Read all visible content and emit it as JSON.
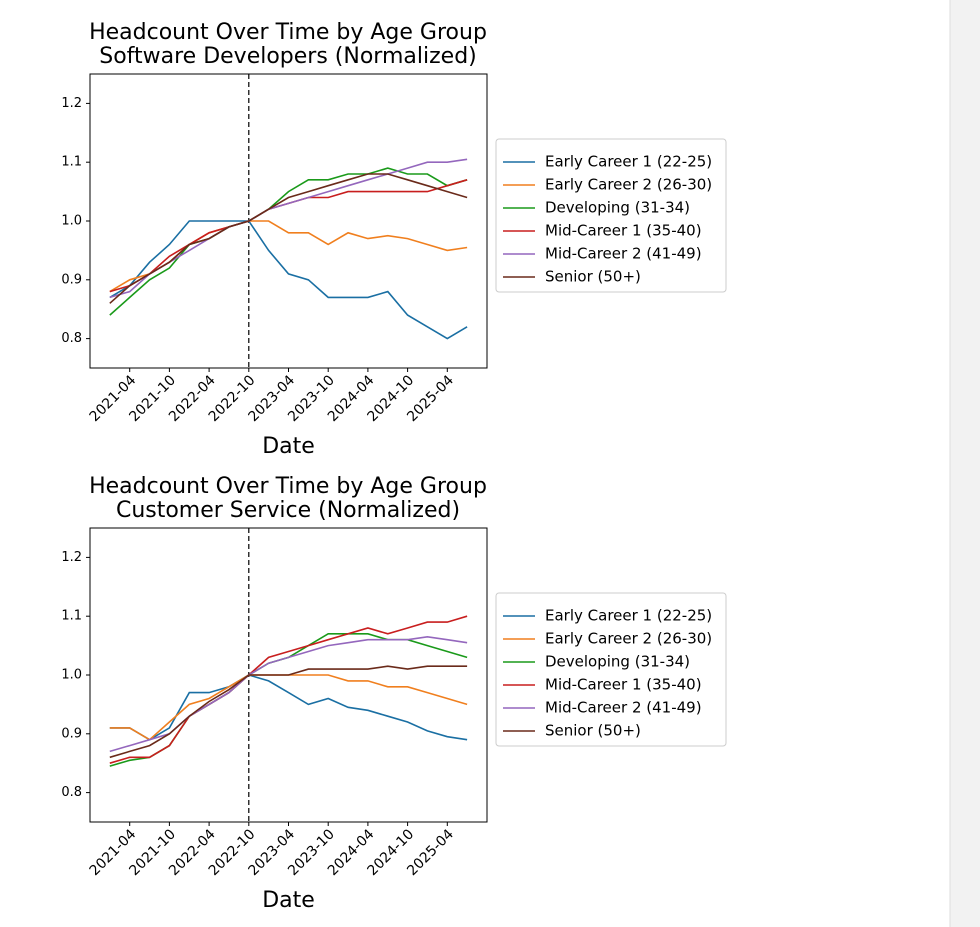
{
  "chart_data": [
    {
      "type": "line",
      "title": "Headcount Over Time by Age Group",
      "subtitle": "Software Developers (Normalized)",
      "xlabel": "Date",
      "x": [
        "2021-01",
        "2021-04",
        "2021-07",
        "2021-10",
        "2022-01",
        "2022-04",
        "2022-07",
        "2022-10",
        "2023-01",
        "2023-04",
        "2023-07",
        "2023-10",
        "2024-01",
        "2024-04",
        "2024-07",
        "2024-10",
        "2025-01",
        "2025-04",
        "2025-07"
      ],
      "series": [
        {
          "name": "Early Career 1 (22-25)",
          "color": "#1a6fa3",
          "values": [
            0.87,
            0.89,
            0.93,
            0.96,
            1.0,
            1.0,
            1.0,
            1.0,
            0.95,
            0.91,
            0.9,
            0.87,
            0.87,
            0.87,
            0.88,
            0.84,
            0.82,
            0.8,
            0.82
          ]
        },
        {
          "name": "Early Career 2 (26-30)",
          "color": "#f07f1e",
          "values": [
            0.88,
            0.9,
            0.91,
            0.93,
            0.96,
            0.98,
            0.99,
            1.0,
            1.0,
            0.98,
            0.98,
            0.96,
            0.98,
            0.97,
            0.975,
            0.97,
            0.96,
            0.95,
            0.955
          ]
        },
        {
          "name": "Developing (31-34)",
          "color": "#1a9a1a",
          "values": [
            0.84,
            0.87,
            0.9,
            0.92,
            0.96,
            0.97,
            0.99,
            1.0,
            1.02,
            1.05,
            1.07,
            1.07,
            1.08,
            1.08,
            1.09,
            1.08,
            1.08,
            1.06,
            1.07
          ]
        },
        {
          "name": "Mid-Career 1 (35-40)",
          "color": "#c81e1e",
          "values": [
            0.88,
            0.89,
            0.91,
            0.94,
            0.96,
            0.98,
            0.99,
            1.0,
            1.02,
            1.03,
            1.04,
            1.04,
            1.05,
            1.05,
            1.05,
            1.05,
            1.05,
            1.06,
            1.07
          ]
        },
        {
          "name": "Mid-Career 2 (41-49)",
          "color": "#9467bd",
          "values": [
            0.87,
            0.88,
            0.91,
            0.93,
            0.95,
            0.97,
            0.99,
            1.0,
            1.02,
            1.03,
            1.04,
            1.05,
            1.06,
            1.07,
            1.08,
            1.09,
            1.1,
            1.1,
            1.105
          ]
        },
        {
          "name": "Senior (50+)",
          "color": "#6a2a1a",
          "values": [
            0.86,
            0.89,
            0.91,
            0.93,
            0.96,
            0.97,
            0.99,
            1.0,
            1.02,
            1.04,
            1.05,
            1.06,
            1.07,
            1.08,
            1.08,
            1.07,
            1.06,
            1.05,
            1.04
          ]
        }
      ],
      "xlim": [
        "2020-10",
        "2025-10"
      ],
      "xticks": [
        "2021-04",
        "2021-10",
        "2022-04",
        "2022-10",
        "2023-04",
        "2023-10",
        "2024-04",
        "2024-10",
        "2025-04"
      ],
      "ylim": [
        0.75,
        1.25
      ],
      "yticks": [
        0.8,
        0.9,
        {
          "value": 1,
          "label": "1.0"
        },
        1.1,
        1.2
      ],
      "vline": "2022-10",
      "legend": "outside right",
      "grid": false
    },
    {
      "type": "line",
      "title": "Headcount Over Time by Age Group",
      "subtitle": "Customer Service (Normalized)",
      "xlabel": "Date",
      "x": [
        "2021-01",
        "2021-04",
        "2021-07",
        "2021-10",
        "2022-01",
        "2022-04",
        "2022-07",
        "2022-10",
        "2023-01",
        "2023-04",
        "2023-07",
        "2023-10",
        "2024-01",
        "2024-04",
        "2024-07",
        "2024-10",
        "2025-01",
        "2025-04",
        "2025-07"
      ],
      "series": [
        {
          "name": "Early Career 1 (22-25)",
          "color": "#1a6fa3",
          "values": [
            0.91,
            0.91,
            0.89,
            0.91,
            0.97,
            0.97,
            0.98,
            1.0,
            0.99,
            0.97,
            0.95,
            0.96,
            0.945,
            0.94,
            0.93,
            0.92,
            0.905,
            0.895,
            0.89
          ]
        },
        {
          "name": "Early Career 2 (26-30)",
          "color": "#f07f1e",
          "values": [
            0.91,
            0.91,
            0.89,
            0.92,
            0.95,
            0.96,
            0.98,
            1.0,
            1.0,
            1.0,
            1.0,
            1.0,
            0.99,
            0.99,
            0.98,
            0.98,
            0.97,
            0.96,
            0.95
          ]
        },
        {
          "name": "Developing (31-34)",
          "color": "#1a9a1a",
          "values": [
            0.845,
            0.855,
            0.86,
            0.88,
            0.93,
            0.95,
            0.97,
            1.0,
            1.02,
            1.03,
            1.05,
            1.07,
            1.07,
            1.07,
            1.06,
            1.06,
            1.05,
            1.04,
            1.03
          ]
        },
        {
          "name": "Mid-Career 1 (35-40)",
          "color": "#c81e1e",
          "values": [
            0.85,
            0.86,
            0.86,
            0.88,
            0.93,
            0.95,
            0.97,
            1.0,
            1.03,
            1.04,
            1.05,
            1.06,
            1.07,
            1.08,
            1.07,
            1.08,
            1.09,
            1.09,
            1.1
          ]
        },
        {
          "name": "Mid-Career 2 (41-49)",
          "color": "#9467bd",
          "values": [
            0.87,
            0.88,
            0.89,
            0.9,
            0.93,
            0.95,
            0.97,
            1.0,
            1.02,
            1.03,
            1.04,
            1.05,
            1.055,
            1.06,
            1.06,
            1.06,
            1.065,
            1.06,
            1.055
          ]
        },
        {
          "name": "Senior (50+)",
          "color": "#6a2a1a",
          "values": [
            0.86,
            0.87,
            0.88,
            0.9,
            0.93,
            0.955,
            0.975,
            1.0,
            1.0,
            1.0,
            1.01,
            1.01,
            1.01,
            1.01,
            1.015,
            1.01,
            1.015,
            1.015,
            1.015
          ]
        }
      ],
      "xlim": [
        "2020-10",
        "2025-10"
      ],
      "xticks": [
        "2021-04",
        "2021-10",
        "2022-04",
        "2022-10",
        "2023-04",
        "2023-10",
        "2024-04",
        "2024-10",
        "2025-04"
      ],
      "ylim": [
        0.75,
        1.25
      ],
      "yticks": [
        0.8,
        0.9,
        {
          "value": 1,
          "label": "1.0"
        },
        1.1,
        1.2
      ],
      "vline": "2022-10",
      "legend": "outside right",
      "grid": false
    }
  ]
}
